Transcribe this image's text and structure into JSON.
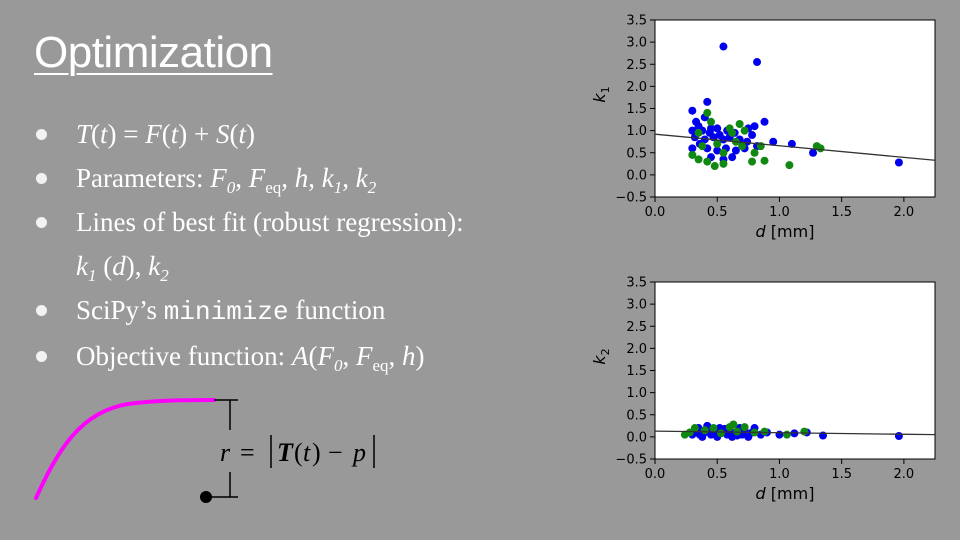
{
  "slide": {
    "title": "Optimization",
    "bullets": {
      "b1": {
        "T": "T",
        "t1": "t",
        "eq": " = ",
        "F": "F",
        "t2": "t",
        "plus": " + ",
        "S": "S",
        "t3": "t"
      },
      "b2": {
        "lead": "Parameters: ",
        "F0": "F",
        "F0sub": "0",
        "Feq": "F",
        "Feqsub": "eq",
        "h": "h",
        "k1": "k",
        "k1sub": "1",
        "k2": "k",
        "k2sub": "2"
      },
      "b3": {
        "text": "Lines of best fit (robust regression):",
        "k1": "k",
        "k1sub": "1",
        "d": "d",
        "k2": "k",
        "k2sub": "2"
      },
      "b4": {
        "lead": "SciPy’s ",
        "code": "minimize",
        "tail": " function"
      },
      "b5": {
        "lead": "Objective function: ",
        "A": "A",
        "F0": "F",
        "F0sub": "0",
        "Feq": "F",
        "Feqsub": "eq",
        "h": "h"
      }
    },
    "annotation": {
      "r": "r",
      "eq": "=",
      "T": "T",
      "t": "t",
      "p": "p"
    },
    "curve_color": "#ff00ff"
  },
  "chart_data": [
    {
      "type": "scatter",
      "xlabel": "d  [mm]",
      "ylabel": "k1",
      "xlim": [
        0.0,
        2.25
      ],
      "ylim": [
        -0.5,
        3.5
      ],
      "xticks": [
        "0.0",
        "0.5",
        "1.0",
        "1.5",
        "2.0"
      ],
      "yticks": [
        "−0.5",
        "0.0",
        "0.5",
        "1.0",
        "1.5",
        "2.0",
        "2.5",
        "3.0",
        "3.5"
      ],
      "fit_line": [
        [
          0.0,
          0.92
        ],
        [
          2.25,
          0.33
        ]
      ],
      "colors": {
        "blue": "#0000ee",
        "green": "#118811"
      },
      "series": [
        {
          "color": "blue",
          "points": [
            [
              0.55,
              2.9
            ],
            [
              0.82,
              2.55
            ],
            [
              0.42,
              1.65
            ],
            [
              0.3,
              1.45
            ],
            [
              0.4,
              1.3
            ],
            [
              0.33,
              1.2
            ],
            [
              0.35,
              1.1
            ],
            [
              0.3,
              1.0
            ],
            [
              0.38,
              1.0
            ],
            [
              0.45,
              1.05
            ],
            [
              0.5,
              1.05
            ],
            [
              0.58,
              1.0
            ],
            [
              0.64,
              0.95
            ],
            [
              0.75,
              1.05
            ],
            [
              0.8,
              1.1
            ],
            [
              0.88,
              1.2
            ],
            [
              0.32,
              0.85
            ],
            [
              0.4,
              0.8
            ],
            [
              0.47,
              0.85
            ],
            [
              0.55,
              0.8
            ],
            [
              0.6,
              0.85
            ],
            [
              0.68,
              0.8
            ],
            [
              0.74,
              0.75
            ],
            [
              0.78,
              0.9
            ],
            [
              0.95,
              0.75
            ],
            [
              1.1,
              0.7
            ],
            [
              0.3,
              0.6
            ],
            [
              0.42,
              0.6
            ],
            [
              0.5,
              0.55
            ],
            [
              0.57,
              0.6
            ],
            [
              0.65,
              0.55
            ],
            [
              0.72,
              0.6
            ],
            [
              0.45,
              0.4
            ],
            [
              0.55,
              0.35
            ],
            [
              0.62,
              0.4
            ],
            [
              0.82,
              0.65
            ],
            [
              1.27,
              0.5
            ],
            [
              0.36,
              0.7
            ],
            [
              1.96,
              0.28
            ],
            [
              0.44,
              0.95
            ],
            [
              0.52,
              0.9
            ]
          ]
        },
        {
          "color": "green",
          "points": [
            [
              0.42,
              1.4
            ],
            [
              0.45,
              1.2
            ],
            [
              0.68,
              1.15
            ],
            [
              0.6,
              1.05
            ],
            [
              0.72,
              1.0
            ],
            [
              0.35,
              0.95
            ],
            [
              0.62,
              0.95
            ],
            [
              0.38,
              0.65
            ],
            [
              0.5,
              0.7
            ],
            [
              0.7,
              0.65
            ],
            [
              0.85,
              0.65
            ],
            [
              0.55,
              0.5
            ],
            [
              0.8,
              0.5
            ],
            [
              0.35,
              0.35
            ],
            [
              0.42,
              0.3
            ],
            [
              0.48,
              0.2
            ],
            [
              0.55,
              0.25
            ],
            [
              0.78,
              0.3
            ],
            [
              0.88,
              0.32
            ],
            [
              1.08,
              0.22
            ],
            [
              1.3,
              0.65
            ],
            [
              1.33,
              0.6
            ],
            [
              0.3,
              0.45
            ],
            [
              0.65,
              0.75
            ]
          ]
        }
      ]
    },
    {
      "type": "scatter",
      "xlabel": "d  [mm]",
      "ylabel": "k2",
      "xlim": [
        0.0,
        2.25
      ],
      "ylim": [
        -0.5,
        3.5
      ],
      "xticks": [
        "0.0",
        "0.5",
        "1.0",
        "1.5",
        "2.0"
      ],
      "yticks": [
        "−0.5",
        "0.0",
        "0.5",
        "1.0",
        "1.5",
        "2.0",
        "2.5",
        "3.0",
        "3.5"
      ],
      "fit_line": [
        [
          0.0,
          0.13
        ],
        [
          2.25,
          0.05
        ]
      ],
      "colors": {
        "blue": "#0000ee",
        "green": "#118811"
      },
      "series": [
        {
          "color": "blue",
          "points": [
            [
              0.3,
              0.05
            ],
            [
              0.33,
              0.1
            ],
            [
              0.35,
              0.2
            ],
            [
              0.38,
              0.0
            ],
            [
              0.4,
              0.1
            ],
            [
              0.42,
              0.25
            ],
            [
              0.45,
              0.05
            ],
            [
              0.48,
              0.15
            ],
            [
              0.5,
              0.0
            ],
            [
              0.52,
              0.2
            ],
            [
              0.55,
              0.1
            ],
            [
              0.58,
              0.05
            ],
            [
              0.6,
              0.15
            ],
            [
              0.62,
              0.0
            ],
            [
              0.65,
              0.1
            ],
            [
              0.68,
              0.2
            ],
            [
              0.7,
              0.05
            ],
            [
              0.72,
              0.15
            ],
            [
              0.75,
              0.0
            ],
            [
              0.78,
              0.1
            ],
            [
              0.8,
              0.2
            ],
            [
              0.85,
              0.05
            ],
            [
              0.9,
              0.1
            ],
            [
              1.0,
              0.05
            ],
            [
              1.12,
              0.08
            ],
            [
              1.22,
              0.1
            ],
            [
              1.35,
              0.03
            ],
            [
              1.96,
              0.02
            ],
            [
              0.36,
              0.05
            ],
            [
              0.44,
              0.12
            ],
            [
              0.56,
              0.18
            ],
            [
              0.66,
              0.03
            ]
          ]
        },
        {
          "color": "green",
          "points": [
            [
              0.28,
              0.1
            ],
            [
              0.32,
              0.2
            ],
            [
              0.4,
              0.15
            ],
            [
              0.47,
              0.2
            ],
            [
              0.53,
              0.08
            ],
            [
              0.6,
              0.22
            ],
            [
              0.66,
              0.12
            ],
            [
              0.72,
              0.22
            ],
            [
              0.8,
              0.1
            ],
            [
              0.88,
              0.12
            ],
            [
              1.06,
              0.05
            ],
            [
              1.2,
              0.12
            ],
            [
              0.24,
              0.05
            ],
            [
              0.63,
              0.28
            ]
          ]
        }
      ]
    }
  ]
}
